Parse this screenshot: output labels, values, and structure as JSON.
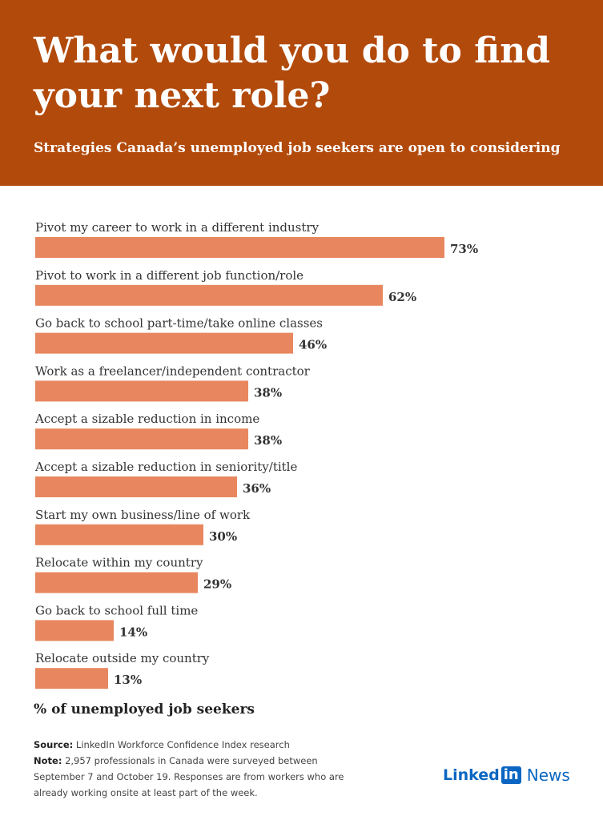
{
  "header": {
    "title": "What would you do to find your next role?",
    "subtitle": "Strategies Canada’s unemployed job seekers are open to considering"
  },
  "chart_data": {
    "type": "bar",
    "orientation": "horizontal",
    "categories": [
      "Pivot my career to work in a different industry",
      "Pivot to work in a different job function/role",
      "Go back to school part-time/take online classes",
      "Work as a freelancer/independent contractor",
      "Accept a sizable reduction in income",
      "Accept a sizable reduction in seniority/title",
      "Start my own business/line of work",
      "Relocate within my country",
      "Go back to school full time",
      "Relocate outside my country"
    ],
    "values": [
      73,
      62,
      46,
      38,
      38,
      36,
      30,
      29,
      14,
      13
    ],
    "value_labels": [
      "73%",
      "62%",
      "46%",
      "38%",
      "38%",
      "36%",
      "30%",
      "29%",
      "14%",
      "13%"
    ],
    "xlabel": "% of unemployed job seekers",
    "xlim": [
      0,
      100
    ],
    "grid": false,
    "bar_color": "#e8875f"
  },
  "notes": {
    "source_label": "Source:",
    "source_text": "LinkedIn Workforce Confidence Index research",
    "note_label": "Note:",
    "note_text": "2,957 professionals in Canada were surveyed between September 7 and October 19. Responses are from workers who are already working onsite at least part of the week."
  },
  "logo": {
    "linked": "Linked",
    "in": "in",
    "news": "News"
  },
  "colors": {
    "header_bg": "#b24a0b",
    "bar": "#e8875f",
    "linkedin_blue": "#0a66c2"
  }
}
